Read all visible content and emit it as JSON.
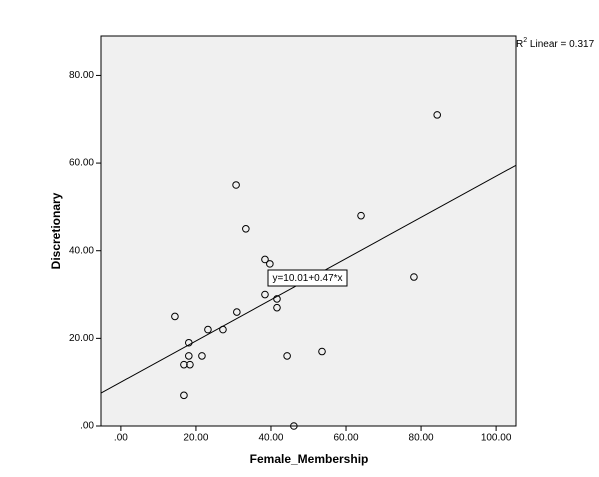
{
  "chart_data": {
    "type": "scatter",
    "xlabel": "Female_Membership",
    "ylabel": "Discretionary",
    "x": [
      14.4,
      16.8,
      16.8,
      18.1,
      18.1,
      18.4,
      21.6,
      23.2,
      27.2,
      30.9,
      30.7,
      33.3,
      38.4,
      39.7,
      38.4,
      41.6,
      41.6,
      44.3,
      46.1,
      53.6,
      64.0,
      78.1,
      84.3
    ],
    "values": [
      25,
      14,
      7,
      19,
      16,
      14,
      16,
      22,
      22,
      26,
      55,
      45,
      38,
      37,
      30,
      29,
      27,
      16,
      0,
      17,
      48,
      34,
      71
    ],
    "xlim": [
      -5.3,
      105.3
    ],
    "ylim": [
      0,
      89
    ],
    "xticks": [
      {
        "value": 0,
        "label": ".00"
      },
      {
        "value": 20,
        "label": "20.00"
      },
      {
        "value": 40,
        "label": "40.00"
      },
      {
        "value": 60,
        "label": "60.00"
      },
      {
        "value": 80,
        "label": "80.00"
      },
      {
        "value": 100,
        "label": "100.00"
      }
    ],
    "yticks": [
      {
        "value": 0,
        "label": ".00"
      },
      {
        "value": 20,
        "label": "20.00"
      },
      {
        "value": 40,
        "label": "40.00"
      },
      {
        "value": 60,
        "label": "60.00"
      },
      {
        "value": 80,
        "label": "80.00"
      }
    ],
    "fit": {
      "intercept": 10.01,
      "slope": 0.47,
      "label": "y=10.01+0.47*x"
    },
    "r2_label": {
      "base": "R",
      "sup": "2",
      "text": " Linear = 0.317"
    },
    "color": "#000000",
    "background": "#f0f0f0"
  }
}
